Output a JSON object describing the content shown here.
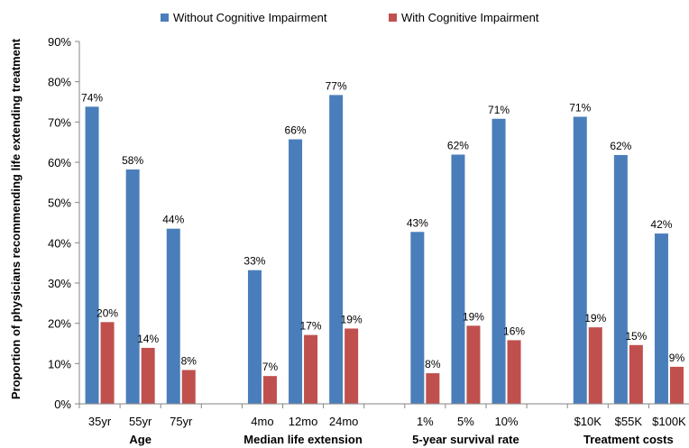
{
  "chart_data": {
    "type": "bar",
    "ylabel": "Proportion of physicians recommending life extending treatment",
    "ylim": [
      0,
      90
    ],
    "y_ticks": [
      "0%",
      "10%",
      "20%",
      "30%",
      "40%",
      "50%",
      "60%",
      "70%",
      "80%",
      "90%"
    ],
    "grid": false,
    "legend_position": "top-center",
    "groups": [
      {
        "label": "Age",
        "categories": [
          "35yr",
          "55yr",
          "75yr"
        ]
      },
      {
        "label": "Median life extension",
        "categories": [
          "4mo",
          "12mo",
          "24mo"
        ]
      },
      {
        "label": "5-year survival rate",
        "categories": [
          "1%",
          "5%",
          "10%"
        ]
      },
      {
        "label": "Treatment costs",
        "categories": [
          "$10K",
          "$55K",
          "$100K"
        ]
      }
    ],
    "series": [
      {
        "name": "Without Cognitive Impairment",
        "color": "#4a7ebb",
        "values": [
          74,
          58,
          44,
          33,
          66,
          77,
          43,
          62,
          71,
          71,
          62,
          42
        ],
        "plotted": [
          73.8,
          58.2,
          43.5,
          33.2,
          65.7,
          76.7,
          42.7,
          61.9,
          70.8,
          71.3,
          61.8,
          42.3
        ],
        "labels": [
          "74%",
          "58%",
          "44%",
          "33%",
          "66%",
          "77%",
          "43%",
          "62%",
          "71%",
          "71%",
          "62%",
          "42%"
        ]
      },
      {
        "name": "With Cognitive Impairment",
        "color": "#c0504d",
        "values": [
          20,
          14,
          8,
          7,
          17,
          19,
          8,
          19,
          16,
          19,
          15,
          9
        ],
        "plotted": [
          20.3,
          13.9,
          8.4,
          6.9,
          17.1,
          18.7,
          7.6,
          19.4,
          15.8,
          19.0,
          14.6,
          9.2
        ],
        "labels": [
          "20%",
          "14%",
          "8%",
          "7%",
          "17%",
          "19%",
          "8%",
          "19%",
          "16%",
          "19%",
          "15%",
          "9%"
        ]
      }
    ]
  }
}
